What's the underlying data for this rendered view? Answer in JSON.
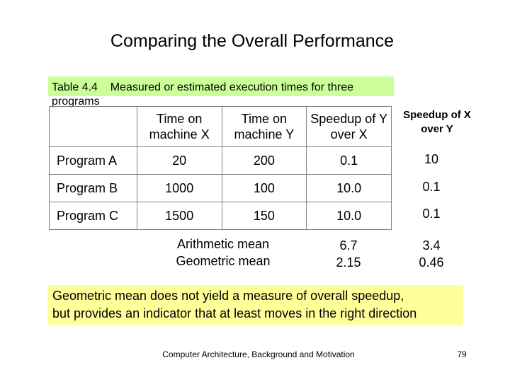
{
  "title": "Comparing the Overall Performance",
  "caption": "Table 4.4    Measured or estimated execution times for three programs",
  "table": {
    "headers": [
      "Time on machine X",
      "Time on machine Y",
      "Speedup of Y over X"
    ],
    "rows": [
      {
        "label": "Program A",
        "x": "20",
        "y": "200",
        "speedup_y_over_x": "0.1"
      },
      {
        "label": "Program B",
        "x": "1000",
        "y": "100",
        "speedup_y_over_x": "10.0"
      },
      {
        "label": "Program C",
        "x": "1500",
        "y": "150",
        "speedup_y_over_x": "10.0"
      }
    ]
  },
  "extra_column": {
    "header": "Speedup of X over Y",
    "values": [
      "10",
      "0.1",
      "0.1"
    ]
  },
  "means": {
    "arithmetic_label": "Arithmetic mean",
    "geometric_label": "Geometric mean",
    "arithmetic_y_over_x": "6.7",
    "geometric_y_over_x": "2.15",
    "arithmetic_x_over_y": "3.4",
    "geometric_x_over_y": "0.46"
  },
  "note": {
    "line1": "Geometric mean does not yield a measure of overall speedup,",
    "line2": "but provides an indicator that at least moves in the right direction"
  },
  "footer": "Computer Architecture, Background and Motivation",
  "page_number": "79",
  "colors": {
    "caption_bg": "#ccff99",
    "note_bg": "#ffff99",
    "table_border": "#808080"
  }
}
